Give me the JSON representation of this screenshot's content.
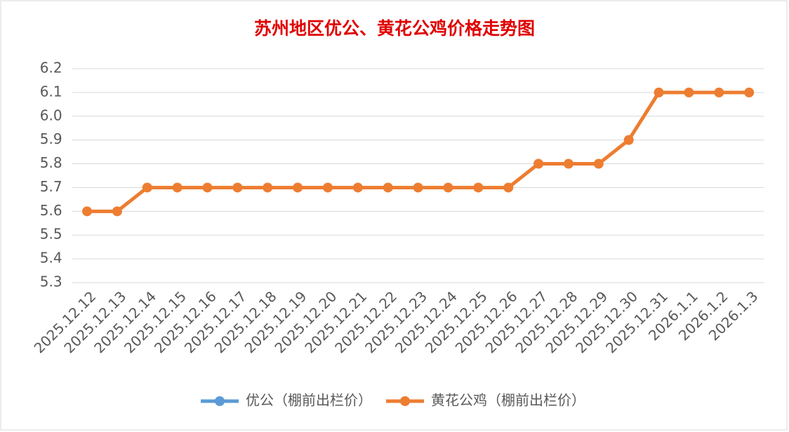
{
  "chart_data": {
    "type": "line",
    "title": "苏州地区优公、黄花公鸡价格走势图",
    "categories": [
      "2025.12.12",
      "2025.12.13",
      "2025.12.14",
      "2025.12.15",
      "2025.12.16",
      "2025.12.17",
      "2025.12.18",
      "2025.12.19",
      "2025.12.20",
      "2025.12.21",
      "2025.12.22",
      "2025.12.23",
      "2025.12.24",
      "2025.12.25",
      "2025.12.26",
      "2025.12.27",
      "2025.12.28",
      "2025.12.29",
      "2025.12.30",
      "2025.12.31",
      "2026.1.1",
      "2026.1.2",
      "2026.1.3"
    ],
    "series": [
      {
        "name": "优公（棚前出栏价）",
        "color": "#5b9bd5",
        "values": [
          null,
          null,
          null,
          null,
          null,
          null,
          null,
          null,
          null,
          null,
          null,
          null,
          null,
          null,
          null,
          null,
          null,
          null,
          null,
          null,
          null,
          null,
          null
        ]
      },
      {
        "name": "黄花公鸡（棚前出栏价）",
        "color": "#ed7d31",
        "values": [
          5.6,
          5.6,
          5.7,
          5.7,
          5.7,
          5.7,
          5.7,
          5.7,
          5.7,
          5.7,
          5.7,
          5.7,
          5.7,
          5.7,
          5.7,
          5.8,
          5.8,
          5.8,
          5.9,
          6.1,
          6.1,
          6.1,
          6.1
        ]
      }
    ],
    "ylim": [
      5.3,
      6.2
    ],
    "yticks": [
      5.3,
      5.4,
      5.5,
      5.6,
      5.7,
      5.8,
      5.9,
      {
        "value": 6,
        "label": "6.0"
      },
      6.1,
      6.2
    ],
    "grid": true,
    "legend": "bottom"
  }
}
